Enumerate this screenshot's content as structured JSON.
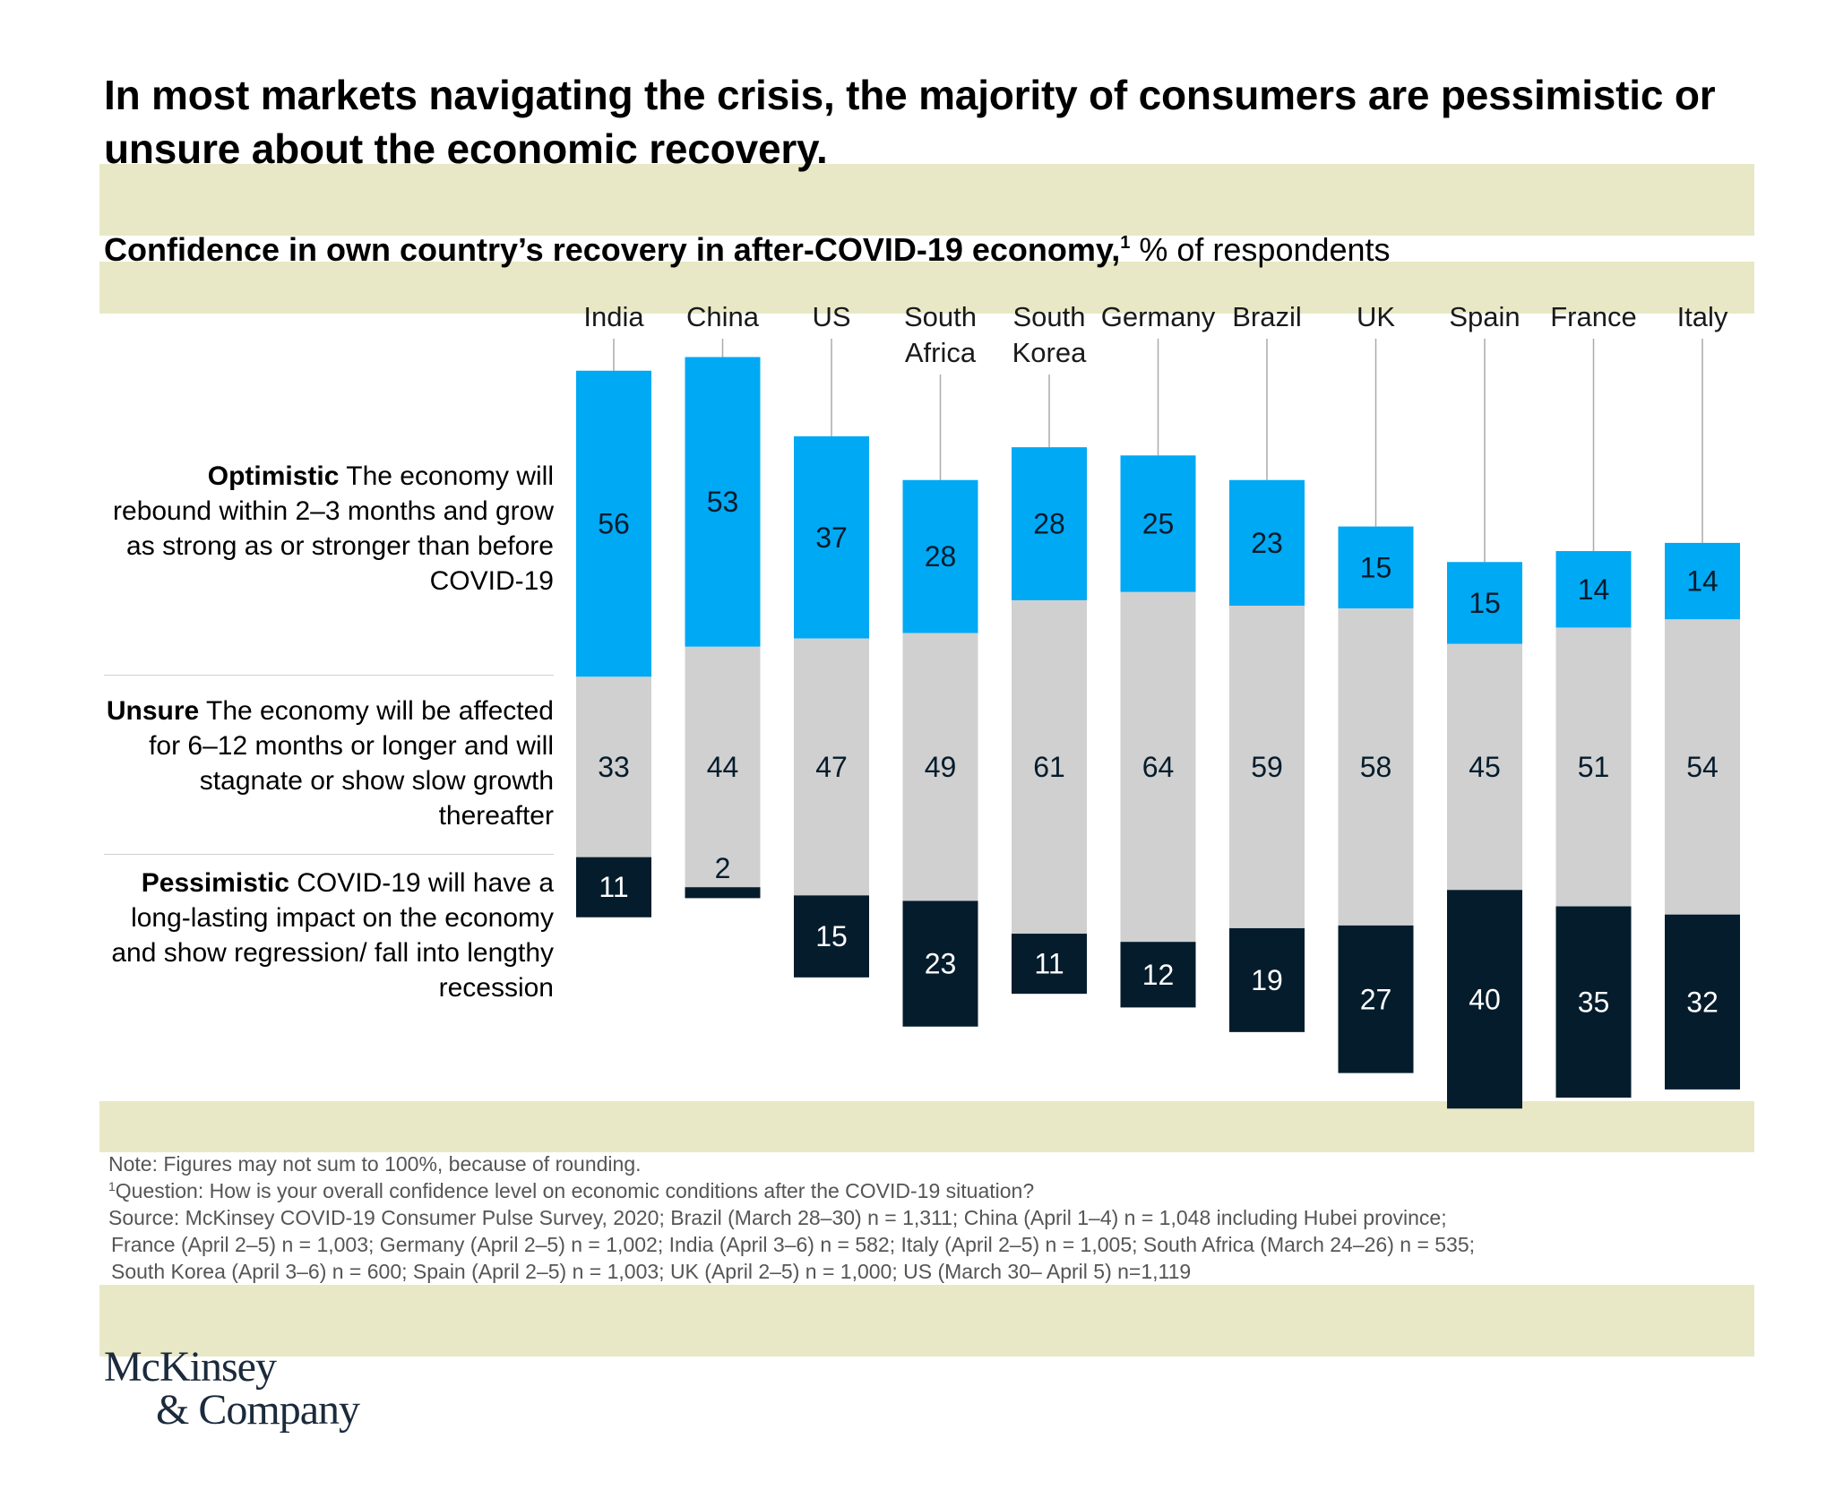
{
  "title": "In most markets navigating the crisis, the majority of consumers are pessimistic or unsure about the economic recovery.",
  "subtitle_bold": "Confidence in own country’s recovery in after-COVID-19 economy,",
  "subtitle_sup": "1",
  "subtitle_rest": " % of respondents",
  "legend": {
    "optimistic": {
      "label": "Optimistic",
      "text": " The economy will rebound within 2–3 months and grow as strong as or stronger than before COVID-19"
    },
    "unsure": {
      "label": "Unsure",
      "text": " The economy will be affected for 6–12 months or longer and will stagnate or show slow growth thereafter"
    },
    "pessimistic": {
      "label": "Pessimistic",
      "text": " COVID-19 will have a long-lasting impact on the economy and show regression/ fall into lengthy recession"
    }
  },
  "chart_data": {
    "type": "bar",
    "stacked": true,
    "categories": [
      [
        "India"
      ],
      [
        "China"
      ],
      [
        "US"
      ],
      [
        "South",
        "Africa"
      ],
      [
        "South",
        "Korea"
      ],
      [
        "Germany"
      ],
      [
        "Brazil"
      ],
      [
        "UK"
      ],
      [
        "Spain"
      ],
      [
        "France"
      ],
      [
        "Italy"
      ]
    ],
    "series": [
      {
        "name": "Optimistic",
        "color": "#00a9f4",
        "values": [
          56,
          53,
          37,
          28,
          28,
          25,
          23,
          15,
          15,
          14,
          14
        ]
      },
      {
        "name": "Unsure",
        "color": "#d0d0d0",
        "values": [
          33,
          44,
          47,
          49,
          61,
          64,
          59,
          58,
          45,
          51,
          54
        ]
      },
      {
        "name": "Pessimistic",
        "color": "#051c2c",
        "values": [
          11,
          2,
          15,
          23,
          11,
          12,
          19,
          27,
          40,
          35,
          32
        ]
      }
    ],
    "label_colors": {
      "Optimistic": "#051c2c",
      "Unsure": "#051c2c",
      "Pessimistic": "#ffffff"
    }
  },
  "footnotes": {
    "note": "Note: Figures may not sum to 100%, because of rounding.",
    "q_sup": "1",
    "question": "Question: How is your overall confidence level on economic conditions after the COVID-19 situation?",
    "source_lines": [
      "Source: McKinsey COVID-19 Consumer Pulse Survey, 2020; Brazil (March 28–30) n = 1,311; China (April 1–4) n = 1,048 including Hubei province;",
      "France (April 2–5) n = 1,003; Germany (April 2–5) n = 1,002; India (April 3–6) n = 582; Italy (April 2–5) n = 1,005; South Africa (March 24–26) n = 535;",
      "South Korea (April 3–6) n = 600; Spain (April 2–5) n = 1,003; UK (April 2–5) n = 1,000; US (March 30– April 5) n=1,119"
    ]
  },
  "logo": {
    "line1": "McKinsey",
    "line2": "& Company"
  }
}
